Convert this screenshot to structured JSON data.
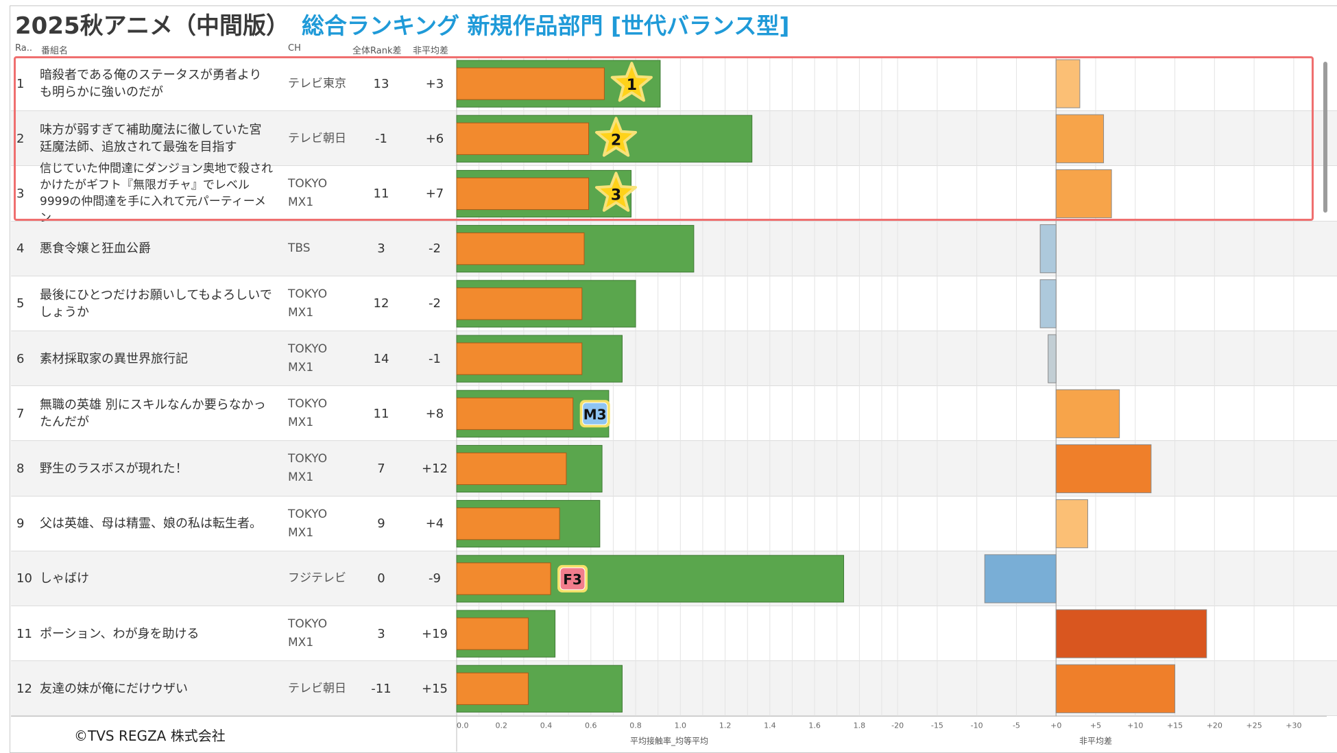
{
  "title": {
    "main": "2025秋アニメ（中間版）",
    "sub": "総合ランキング 新規作品部門 [世代バランス型]"
  },
  "headers": {
    "rank": "Ra..",
    "title": "番組名",
    "ch": "CH",
    "rank_diff": "全体Rank差",
    "non_avg_diff": "非平均差"
  },
  "rows": [
    {
      "rank": "1",
      "title": "暗殺者である俺のステータスが勇者よりも明らかに強いのだが",
      "ch": "テレビ東京",
      "rank_diff": "13",
      "non_avg_diff": "+3"
    },
    {
      "rank": "2",
      "title": "味方が弱すぎて補助魔法に徹していた宮廷魔法師、追放されて最強を目指す",
      "ch": "テレビ朝日",
      "rank_diff": "-1",
      "non_avg_diff": "+6"
    },
    {
      "rank": "3",
      "title": "信じていた仲間達にダンジョン奥地で殺されかけたがギフト『無限ガチャ』でレベル9999の仲間達を手に入れて元パーティーメン",
      "ch": "TOKYO MX1",
      "rank_diff": "11",
      "non_avg_diff": "+7"
    },
    {
      "rank": "4",
      "title": "悪食令嬢と狂血公爵",
      "ch": "TBS",
      "rank_diff": "3",
      "non_avg_diff": "-2"
    },
    {
      "rank": "5",
      "title": "最後にひとつだけお願いしてもよろしいでしょうか",
      "ch": "TOKYO MX1",
      "rank_diff": "12",
      "non_avg_diff": "-2"
    },
    {
      "rank": "6",
      "title": "素材採取家の異世界旅行記",
      "ch": "TOKYO MX1",
      "rank_diff": "14",
      "non_avg_diff": "-1"
    },
    {
      "rank": "7",
      "title": "無職の英雄 別にスキルなんか要らなかったんだが",
      "ch": "TOKYO MX1",
      "rank_diff": "11",
      "non_avg_diff": "+8"
    },
    {
      "rank": "8",
      "title": "野生のラスボスが現れた！",
      "ch": "TOKYO MX1",
      "rank_diff": "7",
      "non_avg_diff": "+12"
    },
    {
      "rank": "9",
      "title": "父は英雄、母は精霊、娘の私は転生者。",
      "ch": "TOKYO MX1",
      "rank_diff": "9",
      "non_avg_diff": "+4"
    },
    {
      "rank": "10",
      "title": "しゃばけ",
      "ch": "フジテレビ",
      "rank_diff": "0",
      "non_avg_diff": "-9"
    },
    {
      "rank": "11",
      "title": "ポーション、わが身を助ける",
      "ch": "TOKYO MX1",
      "rank_diff": "3",
      "non_avg_diff": "+19"
    },
    {
      "rank": "12",
      "title": "友達の妹が俺にだけウザい",
      "ch": "テレビ朝日",
      "rank_diff": "-11",
      "non_avg_diff": "+15"
    }
  ],
  "chart_data": [
    {
      "type": "bar",
      "orientation": "horizontal",
      "categories": [
        "1",
        "2",
        "3",
        "4",
        "5",
        "6",
        "7",
        "8",
        "9",
        "10",
        "11",
        "12"
      ],
      "series": [
        {
          "name": "平均接触率",
          "values": [
            0.91,
            1.32,
            0.78,
            1.06,
            0.8,
            0.74,
            0.68,
            0.65,
            0.64,
            1.73,
            0.44,
            0.74
          ]
        },
        {
          "name": "均等平均",
          "values": [
            0.66,
            0.59,
            0.59,
            0.57,
            0.56,
            0.56,
            0.52,
            0.49,
            0.46,
            0.42,
            0.32,
            0.32
          ]
        }
      ],
      "xlabel": "平均接触率_均等平均",
      "xlim": [
        0,
        1.9
      ],
      "ticks": [
        "0.0",
        "0.2",
        "0.4",
        "0.6",
        "0.8",
        "1.0",
        "1.2",
        "1.4",
        "1.6",
        "1.8"
      ],
      "badges": [
        {
          "row": "1",
          "label": "1",
          "shape": "star"
        },
        {
          "row": "2",
          "label": "2",
          "shape": "star"
        },
        {
          "row": "3",
          "label": "3",
          "shape": "star"
        },
        {
          "row": "7",
          "label": "M3",
          "shape": "tag",
          "color": "#8fc4f2"
        },
        {
          "row": "10",
          "label": "F3",
          "shape": "tag",
          "color": "#f27d8c"
        }
      ]
    },
    {
      "type": "bar",
      "orientation": "horizontal",
      "categories": [
        "1",
        "2",
        "3",
        "4",
        "5",
        "6",
        "7",
        "8",
        "9",
        "10",
        "11",
        "12"
      ],
      "series": [
        {
          "name": "非平均差",
          "values": [
            3,
            6,
            7,
            -2,
            -2,
            -1,
            8,
            12,
            4,
            -9,
            19,
            15
          ]
        }
      ],
      "xlabel": "非平均差",
      "xlim": [
        -22,
        32
      ],
      "ticks": [
        "-20",
        "-15",
        "-10",
        "-5",
        "+0",
        "+5",
        "+10",
        "+15",
        "+20",
        "+25",
        "+30"
      ]
    }
  ],
  "colors": {
    "green": "#5aa64d",
    "orange": "#f28a2e",
    "pos_light": "#fbbf75",
    "pos_mid": "#f7a44a",
    "pos_strong": "#ef7f2a",
    "pos_max": "#d9561f",
    "neg_light": "#adc9dc",
    "neg_small": "#c2ced4",
    "neg_strong": "#79aed6",
    "highlight": "#ef6f6f"
  },
  "footer": {
    "copyright": "©TVS REGZA 株式会社"
  }
}
